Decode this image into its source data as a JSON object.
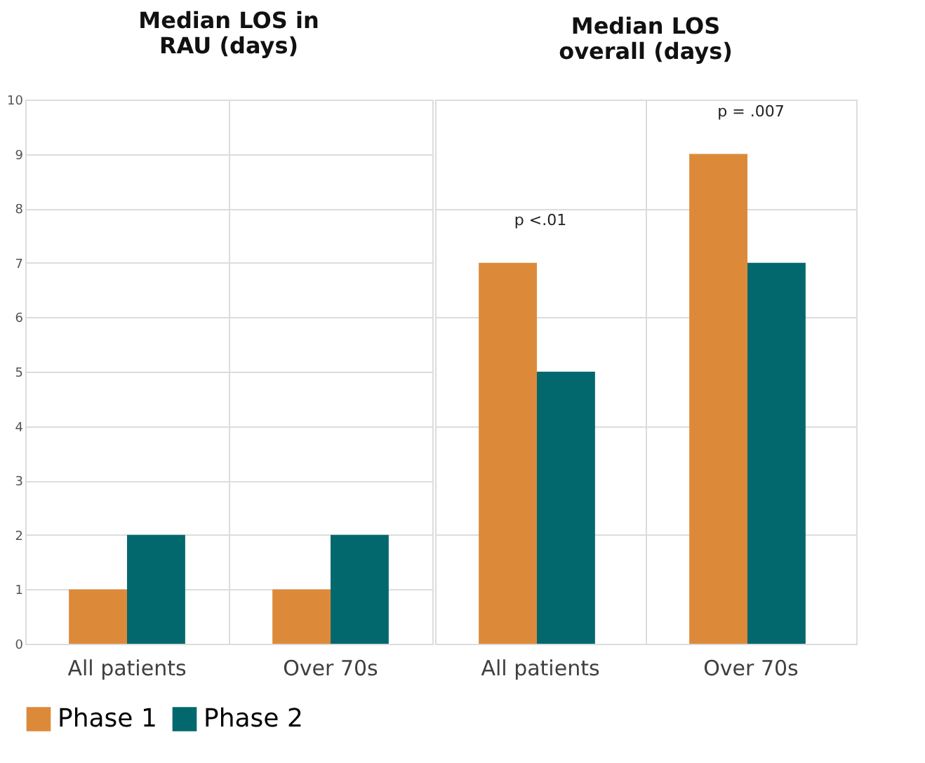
{
  "chart_data": [
    {
      "type": "bar",
      "title": "Median LOS in\nRAU (days)",
      "categories": [
        "All patients",
        "Over 70s"
      ],
      "series": [
        {
          "name": "Phase 1",
          "color": "#dc8a3a",
          "values": [
            1,
            1
          ]
        },
        {
          "name": "Phase 2",
          "color": "#03686d",
          "values": [
            2,
            2
          ]
        }
      ],
      "ylim": [
        0,
        10
      ],
      "yticks": [
        0,
        1,
        2,
        3,
        4,
        5,
        6,
        7,
        8,
        9,
        10
      ],
      "grid": true,
      "legend": "bottom"
    },
    {
      "type": "bar",
      "title": "Median LOS\noverall (days)",
      "categories": [
        "All patients",
        "Over 70s"
      ],
      "series": [
        {
          "name": "Phase 1",
          "color": "#dc8a3a",
          "values": [
            7,
            9
          ]
        },
        {
          "name": "Phase 2",
          "color": "#03686d",
          "values": [
            5,
            7
          ]
        }
      ],
      "ylim": [
        0,
        10
      ],
      "yticks": [
        0,
        1,
        2,
        3,
        4,
        5,
        6,
        7,
        8,
        9,
        10
      ],
      "grid": true,
      "legend": "bottom",
      "tick_labels": "x",
      "annotations": [
        "p <.01",
        "p = .007"
      ]
    }
  ]
}
